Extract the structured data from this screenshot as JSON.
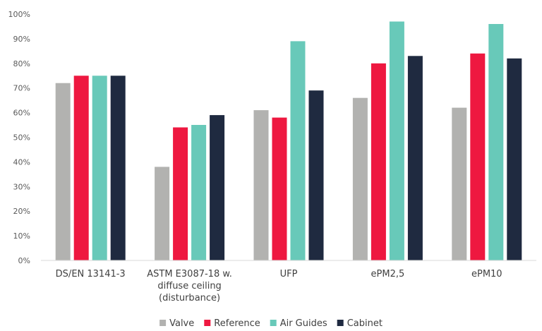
{
  "chart_data": {
    "type": "bar",
    "categories": [
      [
        "DS/EN 13141-3"
      ],
      [
        "ASTM E3087-18 w.",
        "diffuse ceiling",
        "(disturbance)"
      ],
      [
        "UFP"
      ],
      [
        "ePM2,5"
      ],
      [
        "ePM10"
      ]
    ],
    "series": [
      {
        "name": "Valve",
        "color": "#b2b2b0",
        "values": [
          72,
          38,
          61,
          66,
          62
        ]
      },
      {
        "name": "Reference",
        "color": "#ee1840",
        "values": [
          75,
          54,
          58,
          80,
          84
        ]
      },
      {
        "name": "Air Guides",
        "color": "#68c9b9",
        "values": [
          75,
          55,
          89,
          97,
          96
        ]
      },
      {
        "name": "Cabinet",
        "color": "#1f2a40",
        "values": [
          75,
          59,
          69,
          83,
          82
        ]
      }
    ],
    "ylim": [
      0,
      100
    ],
    "yticks": [
      "0%",
      "10%",
      "20%",
      "30%",
      "40%",
      "50%",
      "60%",
      "70%",
      "80%",
      "90%",
      "100%"
    ],
    "grid": false,
    "legend_position": "bottom"
  }
}
